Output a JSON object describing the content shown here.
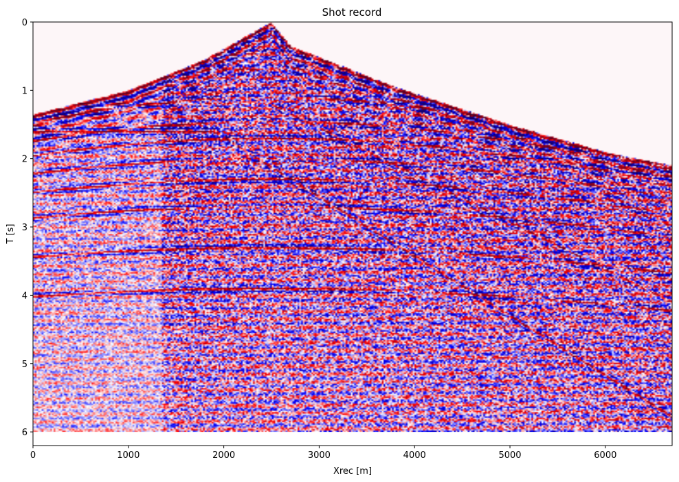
{
  "chart_data": {
    "type": "heatmap",
    "title": "Shot record",
    "xlabel": "Xrec [m]",
    "ylabel": "T [s]",
    "xlim": [
      0,
      6700
    ],
    "ylim": [
      6.2,
      0
    ],
    "x_ticks": [
      0,
      1000,
      2000,
      3000,
      4000,
      5000,
      6000
    ],
    "y_ticks": [
      0,
      1,
      2,
      3,
      4,
      5,
      6
    ],
    "colormap": "seismic",
    "colors": {
      "negative": "#0000cc",
      "zero": "#ffffff",
      "positive": "#cc0000",
      "strong": "#1a0033"
    },
    "record_end_time": 6.0,
    "source_x": 2500,
    "first_break": {
      "x": [
        0,
        1000,
        1800,
        2500,
        2700,
        3800,
        5000,
        6000,
        6700
      ],
      "t": [
        1.35,
        1.0,
        0.55,
        0.0,
        0.35,
        0.95,
        1.5,
        1.9,
        2.1
      ]
    },
    "reflection_t0": [
      1.1,
      1.45,
      1.7,
      2.0,
      2.3,
      2.7,
      3.3,
      3.9
    ]
  }
}
